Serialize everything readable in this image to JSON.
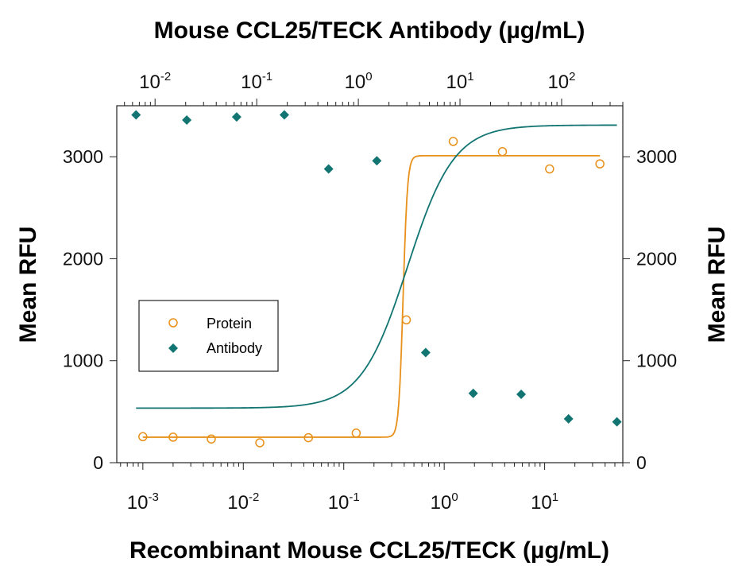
{
  "chart_data": {
    "type": "scatter",
    "title": "Mouse CCL25/TECK Antibody (µg/mL)",
    "xlabel": "Recombinant Mouse CCL25/TECK (µg/mL)",
    "ylabel": "Mean RFU",
    "ylabel_right": "Mean RFU",
    "x_scale": "log",
    "x_top_scale": "log",
    "xlim": [
      0.00055,
      60
    ],
    "x_top_lim": [
      0.0042,
      400
    ],
    "ylim": [
      0,
      3500
    ],
    "y_ticks": [
      0,
      1000,
      2000,
      3000
    ],
    "y_tick_labels": [
      "0",
      "1000",
      "2000",
      "3000"
    ],
    "x_ticks": [
      {
        "value": 0.001,
        "base": "10",
        "exp": "-3"
      },
      {
        "value": 0.01,
        "base": "10",
        "exp": "-2"
      },
      {
        "value": 0.1,
        "base": "10",
        "exp": "-1"
      },
      {
        "value": 1,
        "base": "10",
        "exp": "0"
      },
      {
        "value": 10,
        "base": "10",
        "exp": "1"
      }
    ],
    "x_top_ticks": [
      {
        "value": 0.01,
        "base": "10",
        "exp": "-2"
      },
      {
        "value": 0.1,
        "base": "10",
        "exp": "-1"
      },
      {
        "value": 1,
        "base": "10",
        "exp": "0"
      },
      {
        "value": 10,
        "base": "10",
        "exp": "1"
      },
      {
        "value": 100,
        "base": "10",
        "exp": "2"
      }
    ],
    "legend_position": "left-center",
    "series": [
      {
        "name": "Protein",
        "axis": "bottom",
        "marker": "open-circle",
        "color": "#E8901A",
        "points": [
          {
            "x": 0.001,
            "y": 255
          },
          {
            "x": 0.002,
            "y": 250
          },
          {
            "x": 0.0048,
            "y": 232
          },
          {
            "x": 0.0146,
            "y": 195
          },
          {
            "x": 0.0445,
            "y": 245
          },
          {
            "x": 0.133,
            "y": 290
          },
          {
            "x": 0.42,
            "y": 1400
          },
          {
            "x": 1.23,
            "y": 3150
          },
          {
            "x": 3.8,
            "y": 3050
          },
          {
            "x": 11.2,
            "y": 2880
          },
          {
            "x": 35.5,
            "y": 2930
          }
        ],
        "fit": {
          "bottom": 250,
          "top": 3010,
          "ec50": 0.39,
          "hill": 20,
          "x_from": 0.001,
          "x_to": 35.5
        }
      },
      {
        "name": "Antibody",
        "axis": "top",
        "marker": "filled-diamond",
        "color": "#127572",
        "points": [
          {
            "x": 0.0065,
            "y": 3410
          },
          {
            "x": 0.0205,
            "y": 3360
          },
          {
            "x": 0.0635,
            "y": 3390
          },
          {
            "x": 0.187,
            "y": 3410
          },
          {
            "x": 0.51,
            "y": 2880
          },
          {
            "x": 1.52,
            "y": 2960
          },
          {
            "x": 4.6,
            "y": 1080
          },
          {
            "x": 13.5,
            "y": 680
          },
          {
            "x": 40,
            "y": 670
          },
          {
            "x": 117,
            "y": 430
          },
          {
            "x": 350,
            "y": 400
          }
        ],
        "fit": {
          "bottom": 535,
          "top": 3310,
          "ec50": 3.05,
          "hill": 1.9,
          "x_from": 0.0065,
          "x_to": 350
        }
      }
    ]
  }
}
